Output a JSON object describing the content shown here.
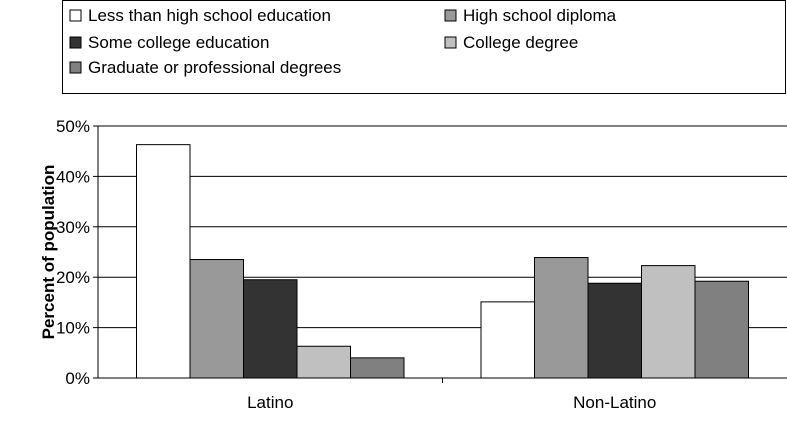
{
  "chart_data": {
    "type": "bar",
    "categories": [
      "Latino",
      "Non-Latino"
    ],
    "series": [
      {
        "name": "Less than high school education",
        "color": "#ffffff",
        "values": [
          46.3,
          15.1
        ]
      },
      {
        "name": "High school diploma",
        "color": "#999999",
        "values": [
          23.5,
          23.9
        ]
      },
      {
        "name": "Some college education",
        "color": "#333333",
        "values": [
          19.5,
          18.8
        ]
      },
      {
        "name": "College degree",
        "color": "#c0c0c0",
        "values": [
          6.3,
          22.3
        ]
      },
      {
        "name": "Graduate or professional degrees",
        "color": "#808080",
        "values": [
          4.0,
          19.2
        ]
      }
    ],
    "xlabel": "",
    "ylabel": "Percent of population",
    "ylim": [
      0,
      50
    ],
    "yticks": [
      "0%",
      "10%",
      "20%",
      "30%",
      "40%",
      "50%"
    ],
    "grid": true,
    "legend_position": "top"
  }
}
